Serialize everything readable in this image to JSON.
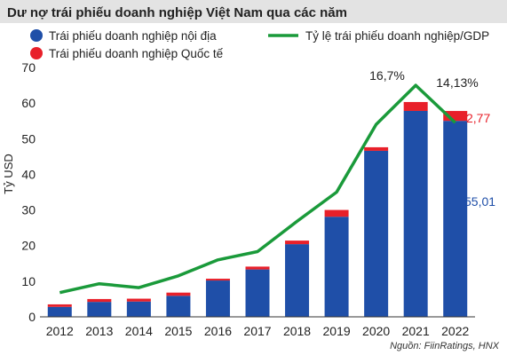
{
  "chart_data": {
    "type": "bar",
    "title": "Dư nợ trái phiếu doanh nghiệp Việt Nam qua các năm",
    "ylabel": "Tỷ USD",
    "xlabel": "",
    "categories": [
      "2012",
      "2013",
      "2014",
      "2015",
      "2016",
      "2017",
      "2018",
      "2019",
      "2020",
      "2021",
      "2022"
    ],
    "ylim": [
      0,
      70
    ],
    "yticks": [
      0,
      10,
      20,
      30,
      40,
      50,
      60,
      70
    ],
    "stacked": true,
    "grid": false,
    "legend_position": "top",
    "series": [
      {
        "name": "Trái phiếu doanh nghiệp nội địa",
        "kind": "bar",
        "color": "#1f4fa8",
        "values": [
          2.8,
          4.2,
          4.3,
          5.9,
          10.2,
          13.3,
          20.4,
          28.1,
          46.6,
          57.8,
          55.01
        ]
      },
      {
        "name": "Trái phiếu doanh nghiệp Quốc tế",
        "kind": "bar",
        "color": "#e8202a",
        "values": [
          0.7,
          0.8,
          0.8,
          0.9,
          0.5,
          0.8,
          1.0,
          1.9,
          1.0,
          2.5,
          2.77
        ]
      },
      {
        "name": "Tỷ lệ trái phiếu doanh nghiệp/GDP",
        "kind": "line",
        "color": "#1a9a3a",
        "values_on_left_axis_scale": [
          6.8,
          9.3,
          8.2,
          11.5,
          16.0,
          18.3,
          26.8,
          35.0,
          54.0,
          65.0,
          54.5
        ]
      }
    ],
    "annotations": {
      "ratio_2021": "16,7%",
      "ratio_2022": "14,13%",
      "intl_2022": "2,77",
      "domestic_2022": "55,01"
    },
    "source": "Nguồn: FiinRatings, HNX"
  },
  "colors": {
    "title_bg": "#e3e3e3",
    "domestic": "#1f4fa8",
    "international": "#e8202a",
    "ratio_line": "#1a9a3a",
    "text": "#222222"
  }
}
